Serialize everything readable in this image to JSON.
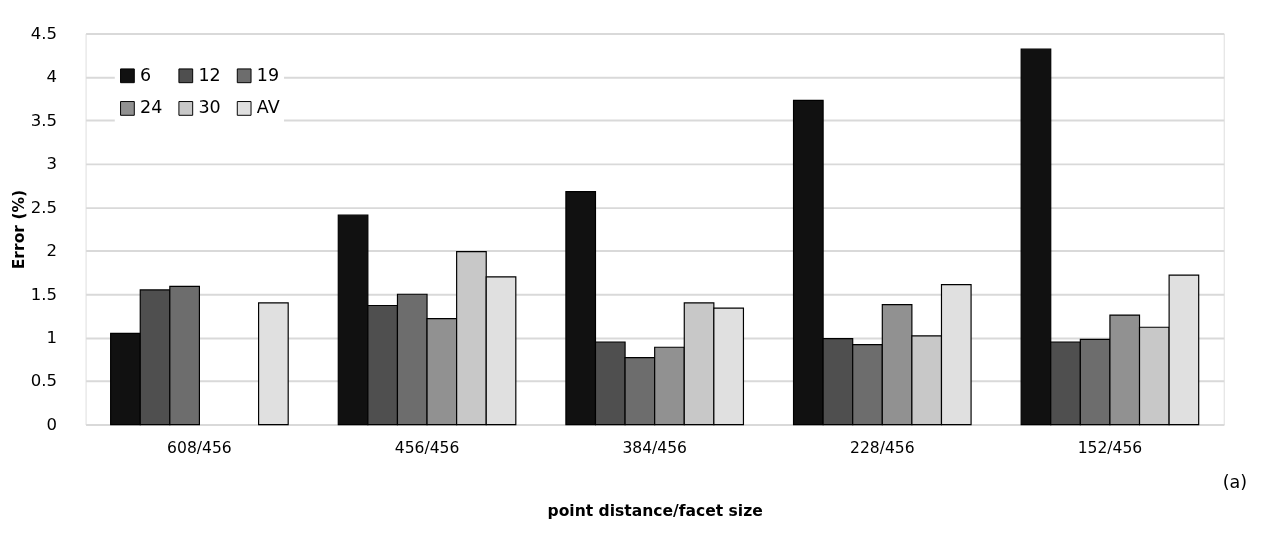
{
  "chart_data": {
    "type": "bar",
    "xlabel": "point distance/facet size",
    "ylabel": "Error (%)",
    "categories": [
      "608/456",
      "456/456",
      "384/456",
      "228/456",
      "152/456"
    ],
    "series": [
      {
        "name": "6",
        "color": "#111111",
        "values": [
          1.05,
          2.41,
          2.68,
          3.73,
          4.32
        ]
      },
      {
        "name": "12",
        "color": "#4f4f4f",
        "values": [
          1.55,
          1.37,
          0.95,
          0.99,
          0.95
        ]
      },
      {
        "name": "19",
        "color": "#6d6d6d",
        "values": [
          1.59,
          1.5,
          0.77,
          0.92,
          0.98
        ]
      },
      {
        "name": "24",
        "color": "#919191",
        "values": [
          null,
          1.22,
          0.89,
          1.38,
          1.26
        ]
      },
      {
        "name": "30",
        "color": "#c8c8c8",
        "values": [
          null,
          1.99,
          1.4,
          1.02,
          1.12
        ]
      },
      {
        "name": "AV",
        "color": "#e0e0e0",
        "values": [
          1.4,
          1.7,
          1.34,
          1.61,
          1.72
        ]
      }
    ],
    "ylim": [
      0,
      4.5
    ],
    "yticks": [
      0,
      0.5,
      1,
      1.5,
      2,
      2.5,
      3,
      3.5,
      4,
      4.5
    ],
    "grid": "y",
    "legend": "top left",
    "annotations": [
      "(a)"
    ]
  }
}
